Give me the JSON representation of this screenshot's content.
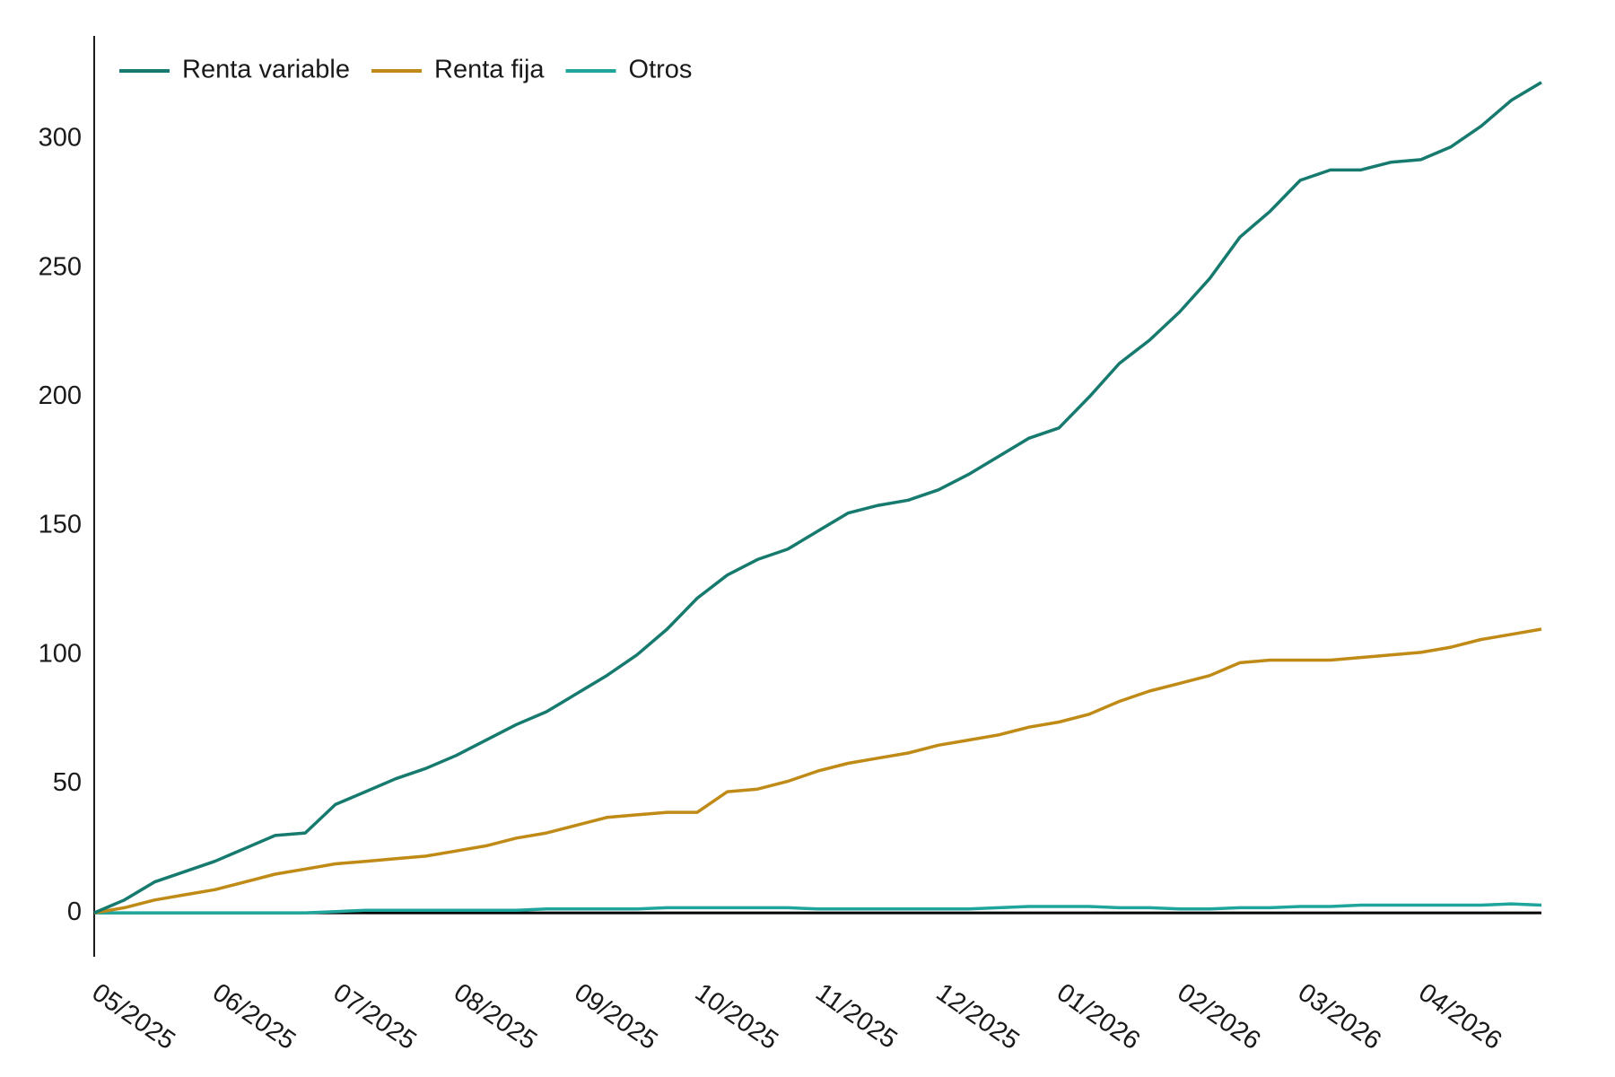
{
  "chart_data": {
    "type": "line",
    "categories": [
      "05/2025",
      null,
      null,
      null,
      "06/2025",
      null,
      null,
      null,
      "07/2025",
      null,
      null,
      null,
      "08/2025",
      null,
      null,
      null,
      "09/2025",
      null,
      null,
      null,
      "10/2025",
      null,
      null,
      null,
      "11/2025",
      null,
      null,
      null,
      "12/2025",
      null,
      null,
      null,
      "01/2026",
      null,
      null,
      null,
      "02/2026",
      null,
      null,
      null,
      "03/2026",
      null,
      null,
      null,
      "04/2026",
      null,
      null,
      null,
      null
    ],
    "series": [
      {
        "name": "Renta variable",
        "color": "#167a6e",
        "values": [
          0,
          5,
          12,
          16,
          20,
          25,
          30,
          31,
          42,
          47,
          52,
          56,
          61,
          67,
          73,
          78,
          85,
          92,
          100,
          110,
          122,
          131,
          137,
          141,
          148,
          155,
          158,
          160,
          164,
          170,
          177,
          184,
          188,
          200,
          213,
          222,
          233,
          246,
          262,
          272,
          284,
          288,
          288,
          291,
          292,
          297,
          305,
          315,
          322
        ]
      },
      {
        "name": "Renta fija",
        "color": "#c08a16",
        "values": [
          0,
          2,
          5,
          7,
          9,
          12,
          15,
          17,
          19,
          20,
          21,
          22,
          24,
          26,
          29,
          31,
          34,
          37,
          38,
          39,
          39,
          47,
          48,
          51,
          55,
          58,
          60,
          62,
          65,
          67,
          69,
          72,
          74,
          77,
          82,
          86,
          89,
          92,
          97,
          98,
          98,
          98,
          99,
          100,
          101,
          103,
          106,
          108,
          110
        ]
      },
      {
        "name": "Otros",
        "color": "#1fa59b",
        "values": [
          0,
          0,
          0,
          0,
          0,
          0,
          0,
          0,
          0.5,
          1,
          1,
          1,
          1,
          1,
          1,
          1.5,
          1.5,
          1.5,
          1.5,
          2,
          2,
          2,
          2,
          2,
          1.5,
          1.5,
          1.5,
          1.5,
          1.5,
          1.5,
          2,
          2.5,
          2.5,
          2.5,
          2,
          2,
          1.5,
          1.5,
          2,
          2,
          2.5,
          2.5,
          3,
          3,
          3,
          3,
          3,
          3.5,
          3
        ]
      }
    ],
    "ylim": [
      -17,
      340
    ],
    "yticks": [
      0,
      50,
      100,
      150,
      200,
      250,
      300
    ],
    "legend": "upper left",
    "zero_line_color": "#000000"
  }
}
